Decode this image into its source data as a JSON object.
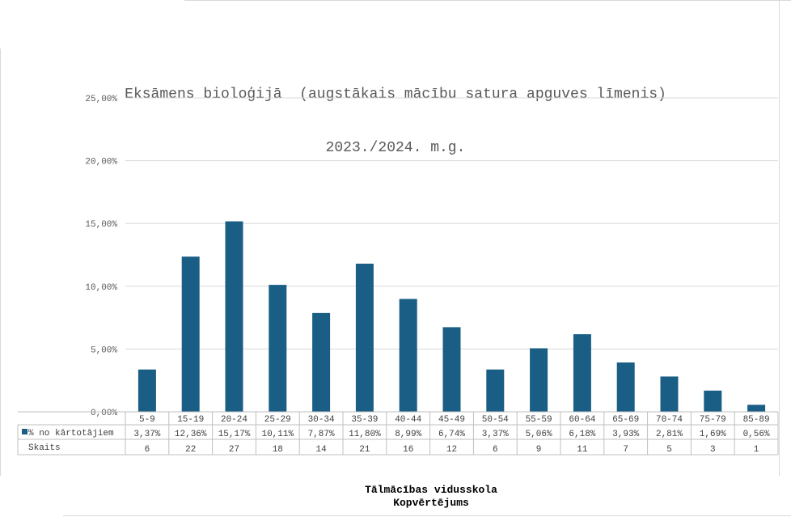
{
  "chart_data": {
    "type": "bar",
    "title": "Eksāmens bioloģijā  (augstākais mācību satura apguves līmenis)",
    "subtitle": "2023./2024. m.g.",
    "categories": [
      "5-9",
      "15-19",
      "20-24",
      "25-29",
      "30-34",
      "35-39",
      "40-44",
      "45-49",
      "50-54",
      "55-59",
      "60-64",
      "65-69",
      "70-74",
      "75-79",
      "85-89"
    ],
    "series": [
      {
        "name": "% no kārtotājiem",
        "values": [
          3.37,
          12.36,
          15.17,
          10.11,
          7.87,
          11.8,
          8.99,
          6.74,
          3.37,
          5.06,
          6.18,
          3.93,
          2.81,
          1.69,
          0.56
        ],
        "labels": [
          "3,37%",
          "12,36%",
          "15,17%",
          "10,11%",
          "7,87%",
          "11,80%",
          "8,99%",
          "6,74%",
          "3,37%",
          "5,06%",
          "6,18%",
          "3,93%",
          "2,81%",
          "1,69%",
          "0,56%"
        ],
        "color": "#1a5e85"
      }
    ],
    "table_rows": [
      {
        "name": "Skaits",
        "values": [
          "6",
          "22",
          "27",
          "18",
          "14",
          "21",
          "16",
          "12",
          "6",
          "9",
          "11",
          "7",
          "5",
          "3",
          "1"
        ]
      }
    ],
    "ylim": [
      0,
      25
    ],
    "yticks": [
      0,
      5,
      10,
      15,
      20,
      25
    ],
    "ytick_labels": [
      "0,00%",
      "5,00%",
      "10,00%",
      "15,00%",
      "20,00%",
      "25,00%"
    ],
    "grid": true,
    "legend": "data-table"
  },
  "footer": {
    "line1": "Tālmācības vidusskola",
    "line2": "Kopvērtējums"
  }
}
